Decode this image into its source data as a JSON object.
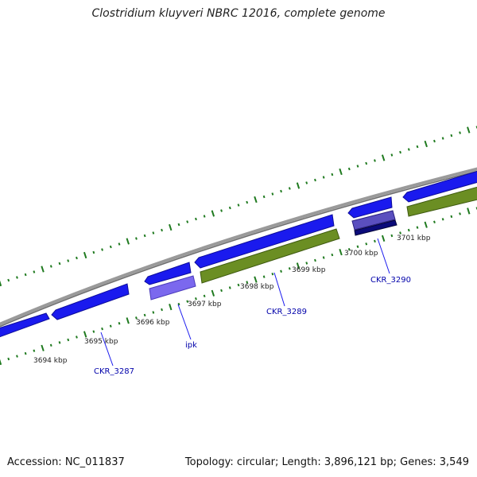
{
  "title": "Clostridium kluyveri NBRC 12016, complete genome",
  "footer": {
    "accession": "Accession: NC_011837",
    "summary": "Topology: circular; Length: 3,896,121 bp; Genes: 3,549"
  },
  "colors": {
    "backbone": "#8c8c8c",
    "gene_blue": "#1a1aee",
    "gene_light_purple": "#7b68ee",
    "gene_dark_navy": "#0b0b7a",
    "gene_olive": "#6b8e23",
    "tick_green": "#1f7a1f",
    "label_blue": "#0000aa"
  },
  "kbp_labels": [
    "3694 kbp",
    "3695 kbp",
    "3696 kbp",
    "3697 kbp",
    "3698 kbp",
    "3699 kbp",
    "3700 kbp",
    "3701 kbp"
  ],
  "gene_labels": [
    "CKR_3287",
    "ipk",
    "CKR_3289",
    "CKR_3290"
  ]
}
